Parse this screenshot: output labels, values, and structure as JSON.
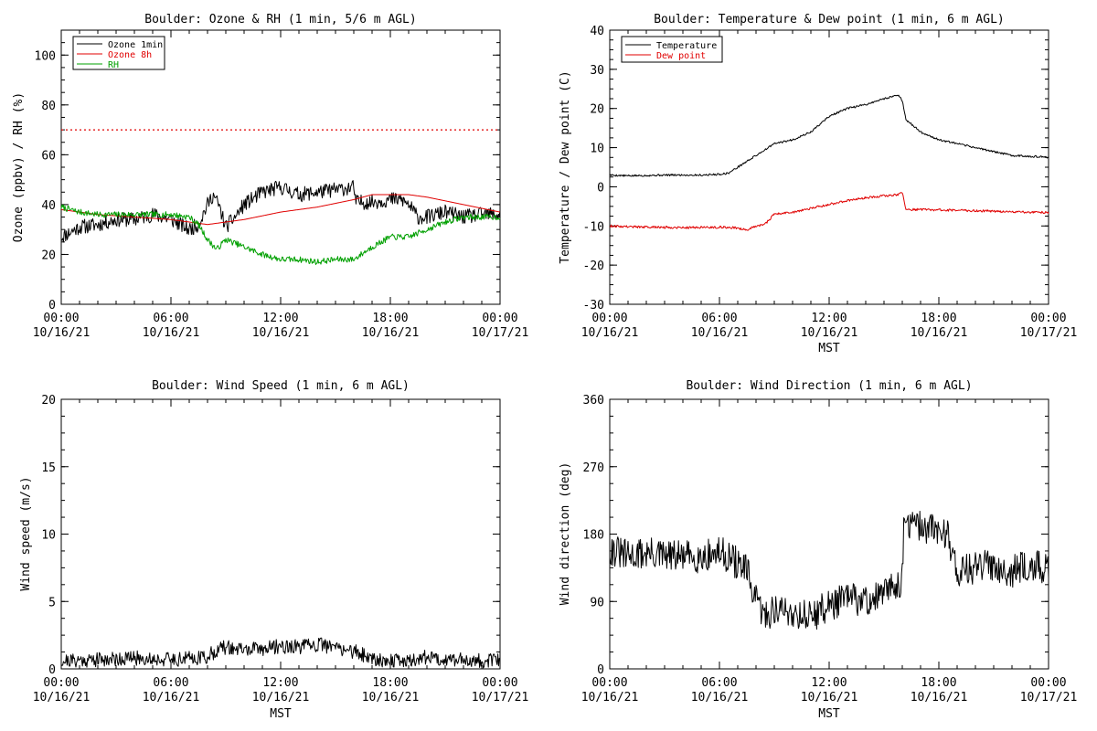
{
  "colors": {
    "black": "#000000",
    "red": "#e00000",
    "green": "#00a000",
    "axis": "#000000"
  },
  "x_tick_labels": [
    [
      "00:00",
      "10/16/21"
    ],
    [
      "06:00",
      "10/16/21"
    ],
    [
      "12:00",
      "10/16/21"
    ],
    [
      "18:00",
      "10/16/21"
    ],
    [
      "00:00",
      "10/17/21"
    ]
  ],
  "chart_data": [
    {
      "id": "ozone_rh",
      "type": "line",
      "title": "Boulder: Ozone & RH (1 min, 5/6 m AGL)",
      "xlabel": "",
      "ylabel": "Ozone (ppbv) / RH (%)",
      "xlim": [
        0,
        24
      ],
      "ylim": [
        0,
        110
      ],
      "yticks": [
        0,
        20,
        40,
        60,
        80,
        100
      ],
      "threshold": {
        "value": 70,
        "color": "#e00000",
        "style": "dotted"
      },
      "legend": {
        "placement": "top-left",
        "entries": [
          "Ozone 1min",
          "Ozone 8h",
          "RH"
        ]
      },
      "series": [
        {
          "name": "Ozone 1min",
          "color": "#000000",
          "noise": 3,
          "seed": 11,
          "x": [
            0,
            1,
            2,
            3,
            4,
            5,
            6,
            6.5,
            7,
            7.5,
            8,
            8.3,
            8.6,
            9,
            9.5,
            10,
            11,
            12,
            13,
            14,
            15,
            16,
            16.1,
            17,
            18,
            18.6,
            19,
            19.5,
            20,
            21,
            22,
            23,
            24
          ],
          "y": [
            27,
            31,
            32,
            34,
            34,
            36,
            34,
            32,
            30,
            32,
            40,
            44,
            40,
            31,
            35,
            40,
            45,
            47,
            44,
            45,
            46,
            47,
            41,
            41,
            42,
            42,
            40,
            35,
            35,
            37,
            35,
            36,
            36
          ]
        },
        {
          "name": "Ozone 8h",
          "color": "#e00000",
          "noise": 0,
          "seed": 3,
          "x": [
            0,
            2,
            4,
            6,
            7,
            8,
            10,
            12,
            14,
            16,
            17,
            18,
            19,
            20,
            22,
            24
          ],
          "y": [
            38,
            36,
            35,
            34,
            33,
            32,
            34,
            37,
            39,
            42,
            44,
            44,
            44,
            43,
            40,
            37
          ]
        },
        {
          "name": "RH",
          "color": "#00a000",
          "noise": 1.2,
          "seed": 7,
          "x": [
            0,
            1,
            2,
            3,
            4,
            5,
            6,
            7,
            7.5,
            8,
            8.5,
            9,
            10,
            11,
            12,
            13,
            14,
            15,
            16,
            17,
            18,
            19,
            20,
            21,
            22,
            23,
            24
          ],
          "y": [
            39,
            37,
            36,
            36,
            36,
            36,
            36,
            35,
            32,
            26,
            22,
            26,
            23,
            20,
            18,
            18,
            17,
            18,
            18,
            23,
            27,
            27,
            30,
            33,
            35,
            35,
            35
          ]
        }
      ]
    },
    {
      "id": "temp_dew",
      "type": "line",
      "title": "Boulder: Temperature & Dew point (1 min, 6 m AGL)",
      "xlabel": "MST",
      "ylabel": "Temperature / Dew point (C)",
      "xlim": [
        0,
        24
      ],
      "ylim": [
        -30,
        40
      ],
      "yticks": [
        -30,
        -20,
        -10,
        0,
        10,
        20,
        30,
        40
      ],
      "legend": {
        "placement": "top-left",
        "entries": [
          "Temperature",
          "Dew point"
        ]
      },
      "series": [
        {
          "name": "Temperature",
          "color": "#000000",
          "noise": 0.25,
          "seed": 5,
          "x": [
            0,
            1,
            2,
            3,
            4,
            5,
            6,
            6.5,
            7,
            8,
            9,
            10,
            11,
            12,
            13,
            14,
            15,
            15.8,
            16,
            16.2,
            16.5,
            17,
            18,
            19,
            20,
            21,
            22,
            23,
            24
          ],
          "y": [
            3,
            2.8,
            2.9,
            3,
            3,
            3,
            3.2,
            3.5,
            5,
            8,
            11,
            12,
            14,
            18,
            20,
            21,
            22.5,
            23.5,
            22,
            17,
            16,
            14,
            12,
            11,
            10,
            9,
            8,
            7.8,
            7.5
          ]
        },
        {
          "name": "Dew point",
          "color": "#e00000",
          "noise": 0.3,
          "seed": 9,
          "x": [
            0,
            2,
            4,
            6,
            7,
            7.5,
            8,
            8.5,
            9,
            10,
            11,
            12,
            13,
            14,
            15,
            15.8,
            16,
            16.2,
            17,
            18,
            20,
            22,
            24
          ],
          "y": [
            -10,
            -10.3,
            -10.4,
            -10.3,
            -10.5,
            -11,
            -10,
            -9.5,
            -7,
            -6.5,
            -5.5,
            -4.5,
            -3.5,
            -2.8,
            -2.3,
            -2,
            -1.5,
            -5.8,
            -5.8,
            -5.9,
            -6.1,
            -6.4,
            -6.6
          ]
        }
      ]
    },
    {
      "id": "wind_speed",
      "type": "line",
      "title": "Boulder: Wind Speed (1 min, 6 m AGL)",
      "xlabel": "MST",
      "ylabel": "Wind speed (m/s)",
      "xlim": [
        0,
        24
      ],
      "ylim": [
        0,
        20
      ],
      "yticks": [
        0,
        5,
        10,
        15,
        20
      ],
      "series": [
        {
          "name": "",
          "color": "#000000",
          "noise": 0.55,
          "seed": 21,
          "x": [
            0,
            2,
            4,
            6,
            7,
            8,
            8.5,
            9,
            10,
            11,
            12,
            13,
            14,
            15,
            16,
            17,
            18,
            19,
            20,
            21,
            22,
            23,
            24
          ],
          "y": [
            0.6,
            0.7,
            0.8,
            0.7,
            0.8,
            0.9,
            1.4,
            1.6,
            1.4,
            1.5,
            1.7,
            1.6,
            1.8,
            1.6,
            1.3,
            0.8,
            0.6,
            0.6,
            0.9,
            0.7,
            0.7,
            0.6,
            0.6
          ]
        }
      ]
    },
    {
      "id": "wind_dir",
      "type": "line",
      "title": "Boulder: Wind Direction (1 min, 6 m AGL)",
      "xlabel": "MST",
      "ylabel": "Wind direction (deg)",
      "xlim": [
        0,
        24
      ],
      "ylim": [
        0,
        360
      ],
      "yticks": [
        0,
        90,
        180,
        270,
        360
      ],
      "series": [
        {
          "name": "",
          "color": "#000000",
          "noise": 22,
          "seed": 31,
          "x": [
            0,
            1,
            2,
            3,
            4,
            5,
            6,
            6.5,
            7,
            7.5,
            8,
            8.5,
            9,
            10,
            11,
            12,
            13,
            14,
            15,
            16,
            16.1,
            17,
            18,
            18.5,
            19,
            20,
            21,
            22,
            23,
            24
          ],
          "y": [
            160,
            150,
            155,
            150,
            150,
            150,
            155,
            150,
            140,
            130,
            90,
            70,
            80,
            75,
            70,
            85,
            95,
            90,
            100,
            120,
            195,
            190,
            185,
            180,
            130,
            135,
            140,
            130,
            140,
            130
          ]
        }
      ]
    }
  ]
}
